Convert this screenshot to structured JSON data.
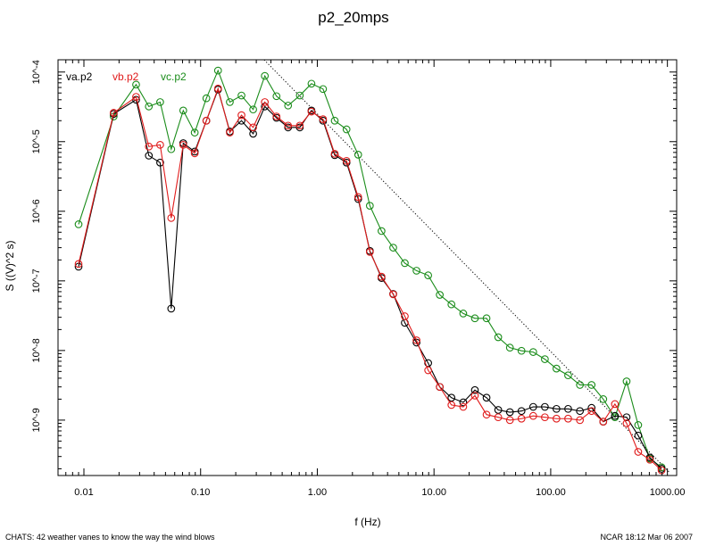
{
  "footer": {
    "left": "CHATS: 42 weather vanes to know the way the wind blows",
    "right": "NCAR 18:12 Mar 06 2007"
  },
  "chart_data": {
    "type": "line",
    "title": "p2_20mps",
    "xlabel": "f (Hz)",
    "ylabel": "S ((V)^2 s)",
    "xscale": "log",
    "yscale": "log",
    "xlim": [
      0.006,
      1200
    ],
    "ylim": [
      1.6e-10,
      0.00015
    ],
    "xticks": [
      {
        "value": 0.01,
        "label": "0.01"
      },
      {
        "value": 0.1,
        "label": "0.10"
      },
      {
        "value": 1,
        "label": "1.00"
      },
      {
        "value": 10,
        "label": "10.00"
      },
      {
        "value": 100,
        "label": "100.00"
      },
      {
        "value": 1000,
        "label": "1000.00"
      }
    ],
    "yticks": [
      {
        "value": 1e-09,
        "label": "10^-9"
      },
      {
        "value": 1e-08,
        "label": "10^-8"
      },
      {
        "value": 1e-07,
        "label": "10^-7"
      },
      {
        "value": 1e-06,
        "label": "10^-6"
      },
      {
        "value": 1e-05,
        "label": "10^-5"
      },
      {
        "value": 0.0001,
        "label": "10^-4"
      }
    ],
    "legend_position": "top-left",
    "x": [
      0.009,
      0.018,
      0.028,
      0.036,
      0.045,
      0.056,
      0.071,
      0.089,
      0.112,
      0.141,
      0.178,
      0.224,
      0.282,
      0.355,
      0.447,
      0.562,
      0.708,
      0.891,
      1.12,
      1.41,
      1.78,
      2.24,
      2.82,
      3.55,
      4.47,
      5.62,
      7.08,
      8.91,
      11.2,
      14.1,
      17.8,
      22.4,
      28.2,
      35.5,
      44.7,
      56.2,
      70.8,
      89.1,
      112,
      141,
      178,
      224,
      282,
      355,
      447,
      562,
      708,
      891
    ],
    "series": [
      {
        "name": "va.p2",
        "color": "#000000",
        "values": [
          1.6e-07,
          2.5e-05,
          4e-05,
          6.3e-06,
          5e-06,
          4e-08,
          9.5e-06,
          7.2e-06,
          2e-05,
          5.6e-05,
          1.4e-05,
          2e-05,
          1.3e-05,
          3.2e-05,
          2.2e-05,
          1.6e-05,
          1.6e-05,
          2.8e-05,
          2e-05,
          6.4e-06,
          5e-06,
          1.5e-06,
          2.7e-07,
          1.1e-07,
          6.5e-08,
          2.5e-08,
          1.3e-08,
          6.6e-09,
          3e-09,
          2.1e-09,
          1.8e-09,
          2.7e-09,
          2.1e-09,
          1.4e-09,
          1.3e-09,
          1.35e-09,
          1.55e-09,
          1.55e-09,
          1.45e-09,
          1.45e-09,
          1.35e-09,
          1.5e-09,
          9.5e-10,
          1.15e-09,
          1.1e-09,
          6e-10,
          2.9e-10,
          2e-10
        ]
      },
      {
        "name": "vb.p2",
        "color": "#e01b1b",
        "values": [
          1.75e-07,
          2.6e-05,
          4.4e-05,
          8.5e-06,
          9e-06,
          8e-07,
          9e-06,
          6.8e-06,
          2e-05,
          5.8e-05,
          1.35e-05,
          2.4e-05,
          1.6e-05,
          3.7e-05,
          2.3e-05,
          1.7e-05,
          1.7e-05,
          2.7e-05,
          2.1e-05,
          6.7e-06,
          5.3e-06,
          1.6e-06,
          2.6e-07,
          1.15e-07,
          6.4e-08,
          3.1e-08,
          1.4e-08,
          5.2e-09,
          3e-09,
          1.65e-09,
          1.55e-09,
          2.25e-09,
          1.2e-09,
          1.1e-09,
          1e-09,
          1.05e-09,
          1.15e-09,
          1.1e-09,
          1.05e-09,
          1.05e-09,
          1e-09,
          1.35e-09,
          9.5e-10,
          1.7e-09,
          9e-10,
          3.5e-10,
          2.7e-10,
          1.9e-10
        ]
      },
      {
        "name": "vc.p2",
        "color": "#1a8c1a",
        "values": [
          6.5e-07,
          2.3e-05,
          6.6e-05,
          3.2e-05,
          3.7e-05,
          7.8e-06,
          2.8e-05,
          1.35e-05,
          4.2e-05,
          0.000105,
          3.7e-05,
          4.6e-05,
          2.9e-05,
          8.8e-05,
          4.5e-05,
          3.3e-05,
          4.6e-05,
          6.8e-05,
          5.7e-05,
          2e-05,
          1.5e-05,
          6.5e-06,
          1.2e-06,
          5.2e-07,
          3e-07,
          1.8e-07,
          1.4e-07,
          1.2e-07,
          6.3e-08,
          4.6e-08,
          3.4e-08,
          2.9e-08,
          2.9e-08,
          1.55e-08,
          1.1e-08,
          9.9e-09,
          9.5e-09,
          7.5e-09,
          5.5e-09,
          4.4e-09,
          3.2e-09,
          3.2e-09,
          2e-09,
          1.1e-09,
          3.6e-09,
          8.5e-10,
          2.8e-10,
          2.1e-10
        ]
      }
    ],
    "reference_line": {
      "style": "dotted",
      "color": "#000000",
      "x": [
        0.35,
        1050
      ],
      "y": [
        0.00015,
        1.75e-10
      ]
    }
  }
}
